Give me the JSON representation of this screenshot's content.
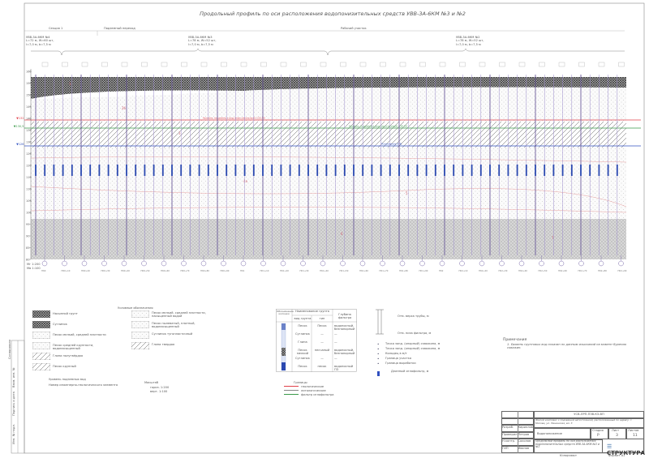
{
  "title": "Продольный профиль по оси расположения водопонизительных средств УВВ-3А-6КМ №3 и №2",
  "header": {
    "section_left": "Секция 1",
    "section_mid": "Подземный переход",
    "section_right": "Рабочий участок",
    "groups": [
      {
        "name": "УВВ-3А-6КМ №4",
        "line1": "L=72 м, W=60 шт,",
        "line2": "l=7,0 м, b=7,5 м"
      },
      {
        "name": "УВВ-3А-6КМ №3",
        "line1": "L=78 м, W=52 шт,",
        "line2": "l=7,0 м, b=7,5 м"
      },
      {
        "name": "УВВ-3А-6КМ №2",
        "line1": "L=78 м, W=52 шт,",
        "line2": "l=7,0 м, b=7,5 м"
      }
    ]
  },
  "profile": {
    "elevations": [
      "160",
      "155",
      "150",
      "145",
      "140",
      "135",
      "130",
      "125",
      "120",
      "115",
      "110",
      "105",
      "100",
      "95",
      "90",
      "85",
      "80"
    ],
    "levels": [
      {
        "label": "▼132",
        "text": "Уровень подземных вод (максимальный) 132,50",
        "color": "#e0404a"
      },
      {
        "label": "▼130,5",
        "text": "Уровень подземных вод (прогнозный) 130,50",
        "color": "#3a9a4a"
      },
      {
        "label": "▼126",
        "text": "Понижение УГВ",
        "color": "#3050c0"
      }
    ],
    "layer_labels": [
      "1",
      "2б",
      "3",
      "4а",
      "5",
      "6",
      "7"
    ],
    "scale_h": "Мг 1:200",
    "scale_v": "Мв 1:100",
    "stations": [
      "ПК0",
      "ПК0+10",
      "ПК0+20",
      "ПК0+30",
      "ПК0+40",
      "ПК0+50",
      "ПК0+60",
      "ПК0+70",
      "ПК0+80",
      "ПК0+90",
      "ПК1",
      "ПК1+10",
      "ПК1+20",
      "ПК1+30",
      "ПК1+40",
      "ПК1+50",
      "ПК1+60",
      "ПК1+70",
      "ПК1+80",
      "ПК1+90",
      "ПК2",
      "ПК2+10",
      "ПК2+20",
      "ПК2+30",
      "ПК2+40",
      "ПК2+50",
      "ПК2+60",
      "ПК2+70",
      "ПК2+80",
      "ПК2+90"
    ]
  },
  "legend": {
    "title": "Условные обозначения",
    "soil_items": [
      "Насыпной грунт",
      "Суглинок",
      "Песок мелкий, средней плотности",
      "Песок средней крупности, водонасыщенный",
      "Глина полутвёрдая",
      "Песок крупный"
    ],
    "mid_items": [
      "Песок мелкий, средней плотности, насыщенный водой",
      "Песок пылеватый, плотный, водонасыщенный",
      "Суглинок тугопластичный",
      "Глина твердая"
    ],
    "small_notes": [
      "Уровень подземных вод",
      "Номер инженерно-геологического элемента"
    ],
    "table_headers": [
      "Обозначение колонки",
      "Наименование грунта",
      "Глубина фильтра"
    ],
    "table_sub": [
      "вид грунта",
      "тип"
    ],
    "table_rows": [
      [
        "Песок",
        "Песок",
        "водоносный, безнапорный"
      ],
      [
        "Суглинок",
        "—",
        "—"
      ],
      [
        "Глина",
        "—",
        "—"
      ],
      [
        "Песок мелкий",
        "песчаный",
        "водоносный, безнапорный"
      ],
      [
        "Суглинок",
        "—",
        "—"
      ],
      [
        "Песок",
        "песок",
        "водоносный ПЗ"
      ]
    ],
    "lines_title": "Границы",
    "lines": [
      "геологические",
      "литологические",
      "фильтр иглофильтра"
    ],
    "well_labels": [
      "Отм. верха трубы, м",
      "Отм. низа фильтра, м"
    ],
    "point_items": [
      "Точка зонд. (опорный) скважина, м",
      "Точка зонд. (опорный) скважина, м",
      "Колодец в м/т",
      "Граница участка",
      "Граница выработки"
    ],
    "filter_note": "Длинный иглофильтр, м",
    "scale_label": "Масштаб",
    "scale_values": [
      "гориз. 1:200",
      "верт. 1:100"
    ]
  },
  "notes": {
    "heading": "Примечания",
    "items": [
      "1. Уровень грунтовых вод показан по данным изысканий на момент бурения скважин."
    ]
  },
  "title_block": {
    "code": "УСВ-ЛРП-ПЗВ-КЗ-ВП",
    "project": "Жилой комплекс с подземной автостоянкой, расположенный по адресу: г. Москва, ул. Ленинская, вл. 3",
    "stage_label": "Стадия",
    "sheet_label": "Лист",
    "sheets_label": "Листов",
    "stage": "Р",
    "sheet": "3",
    "sheets": "11",
    "section": "Водопонижение",
    "drawing": "Продольный профиль по оси расположения водопонизительных средств УВВ-3А-6КМ №3 и №2",
    "roles": [
      "Разраб.",
      "Проверил",
      "Н.контр.",
      "ГИП"
    ],
    "names": [
      "Кириллов",
      "Петров",
      "Соколов",
      "Иванов"
    ],
    "company": "СТРУКТУРА",
    "copied": "Копировал",
    "format": "Формат А1"
  },
  "side_stamp": [
    "Инв. № подл.",
    "Подпись и дата",
    "Взам. инв. №",
    "Согласовано"
  ]
}
